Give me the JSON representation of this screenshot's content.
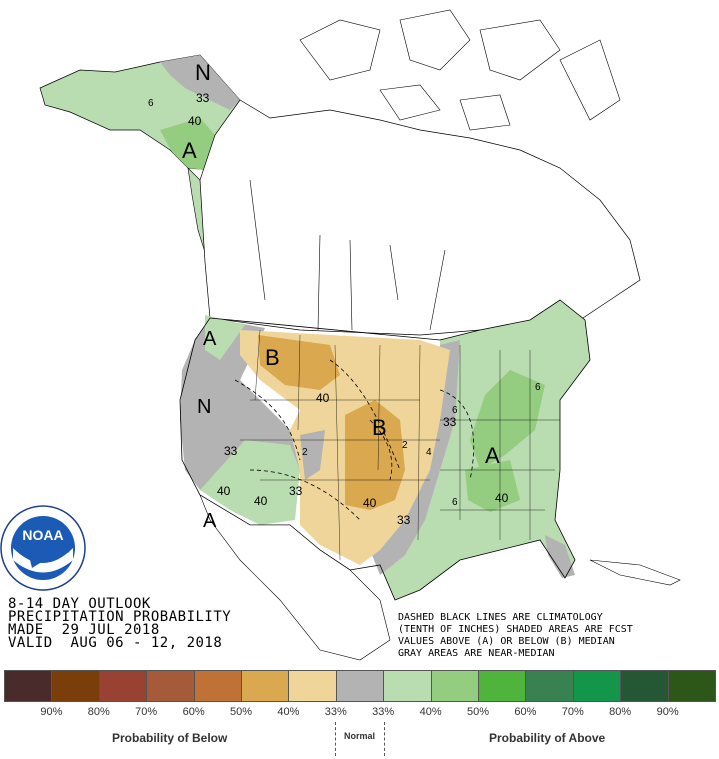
{
  "title_block": {
    "line1": "8-14 DAY OUTLOOK",
    "line2": "PRECIPITATION PROBABILITY",
    "line3": "MADE  29 JUL 2018",
    "line4": "VALID  AUG 06 - 12, 2018"
  },
  "notes": {
    "line1": "DASHED BLACK LINES ARE CLIMATOLOGY",
    "line2": "(TENTH OF INCHES) SHADED AREAS ARE FCST",
    "line3": "VALUES ABOVE (A) OR BELOW (B) MEDIAN",
    "line4": "GRAY AREAS ARE NEAR-MEDIAN"
  },
  "logo": {
    "text": "NOAA"
  },
  "map_labels": {
    "alaska_n": "N",
    "alaska_33": "33",
    "alaska_40": "40",
    "alaska_a": "A",
    "alaska_6": "6",
    "nw_a": "A",
    "west_n": "N",
    "sw_33": "33",
    "sw_40a": "40",
    "sw_40b": "40",
    "sw_33b": "33",
    "sw_a": "A",
    "north_b": "B",
    "north_40": "40",
    "central_b": "B",
    "central_40": "40",
    "central_33": "33",
    "east_a": "A",
    "east_33": "33",
    "east_40": "40",
    "clim_2": "2",
    "clim_4": "4",
    "clim_6": "6",
    "clim_6b": "6",
    "clim_6c": "6",
    "clim_2b": "2"
  },
  "legend": {
    "swatch_colors": [
      "#4a2b2b",
      "#7a3e0a",
      "#994234",
      "#a55a3a",
      "#c07236",
      "#d9a84f",
      "#efd59a",
      "#b3b3b3",
      "#b9dcb0",
      "#94cd80",
      "#4fb43c",
      "#3a8152",
      "#14964a",
      "#265734",
      "#2c5718"
    ],
    "percent_labels": [
      "90%",
      "80%",
      "70%",
      "60%",
      "50%",
      "40%",
      "33%",
      "33%",
      "40%",
      "50%",
      "60%",
      "70%",
      "80%",
      "90%"
    ],
    "below_label": "Probability of Below",
    "normal_label": "Normal",
    "above_label": "Probability of Above"
  }
}
